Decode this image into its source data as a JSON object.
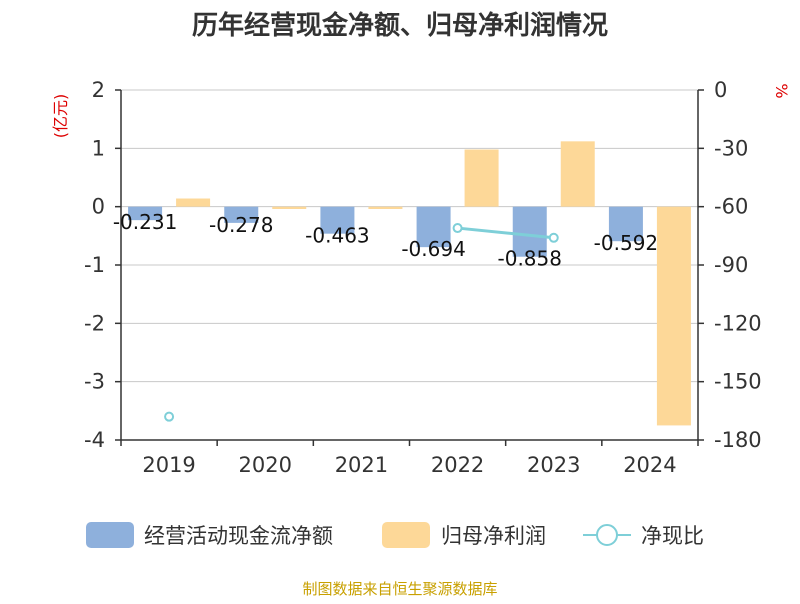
{
  "chart_data": {
    "type": "bar",
    "title": "历年经营现金净额、归母净利润情况",
    "source": "制图数据来自恒生聚源数据库",
    "categories": [
      "2019",
      "2020",
      "2021",
      "2022",
      "2023",
      "2024"
    ],
    "left_axis": {
      "unit": "(亿元)",
      "ylim": [
        -4,
        2
      ],
      "ticks": [
        "2",
        "1",
        "0",
        "-1",
        "-2",
        "-3",
        "-4"
      ],
      "tick_values": [
        2,
        1,
        0,
        -1,
        -2,
        -3,
        -4
      ]
    },
    "right_axis": {
      "unit": "%",
      "ylim": [
        -180,
        0
      ],
      "ticks": [
        "0",
        "-30",
        "-60",
        "-90",
        "-120",
        "-150",
        "-180"
      ],
      "tick_values": [
        0,
        -30,
        -60,
        -90,
        -120,
        -150,
        -180
      ]
    },
    "series": [
      {
        "name": "经营活动现金流净额",
        "kind": "bar",
        "axis": "left",
        "color": "#8eb0dc",
        "values": [
          -0.231,
          -0.278,
          -0.463,
          -0.694,
          -0.858,
          -0.592
        ],
        "labels": [
          "-0.231",
          "-0.278",
          "-0.463",
          "-0.694",
          "-0.858",
          "-0.592"
        ]
      },
      {
        "name": "归母净利润",
        "kind": "bar",
        "axis": "left",
        "color": "#fdd898",
        "values": [
          0.14,
          -0.04,
          -0.04,
          0.98,
          1.12,
          -3.75
        ]
      },
      {
        "name": "净现比",
        "kind": "line",
        "axis": "right",
        "color": "#7ecfd8",
        "values": [
          -168,
          null,
          null,
          -71,
          -76,
          null
        ]
      }
    ],
    "grid": true,
    "legend_position": "bottom"
  }
}
